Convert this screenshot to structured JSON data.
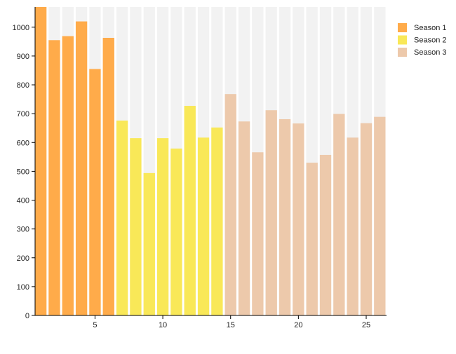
{
  "chart_data": {
    "type": "bar",
    "title": "",
    "xlabel": "",
    "ylabel": "",
    "x": [
      1,
      2,
      3,
      4,
      5,
      6,
      7,
      8,
      9,
      10,
      11,
      12,
      13,
      14,
      15,
      16,
      17,
      18,
      19,
      20,
      21,
      22,
      23,
      24,
      25,
      26
    ],
    "xlim": [
      0.58,
      26.5
    ],
    "ylim": [
      0,
      1070
    ],
    "xticks": [
      5,
      10,
      15,
      20,
      25
    ],
    "yticks": [
      0,
      100,
      200,
      300,
      400,
      500,
      600,
      700,
      800,
      900,
      1000
    ],
    "grid": false,
    "legend_position": "top-right",
    "background_columns_color": "#f2f2f2",
    "series": [
      {
        "name": "Season 1",
        "color": "#ffab4a",
        "x": [
          1,
          2,
          3,
          4,
          5,
          6
        ],
        "values": [
          1080,
          955,
          969,
          1020,
          855,
          963
        ]
      },
      {
        "name": "Season 2",
        "color": "#f9e858",
        "x": [
          7,
          8,
          9,
          10,
          11,
          12,
          13,
          14
        ],
        "values": [
          676,
          615,
          494,
          615,
          579,
          727,
          617,
          652
        ]
      },
      {
        "name": "Season 3",
        "color": "#edc9ab",
        "x": [
          15,
          16,
          17,
          18,
          19,
          20,
          21,
          22,
          23,
          24,
          25,
          26
        ],
        "values": [
          768,
          673,
          566,
          712,
          681,
          666,
          530,
          557,
          699,
          617,
          667,
          689
        ]
      }
    ]
  }
}
